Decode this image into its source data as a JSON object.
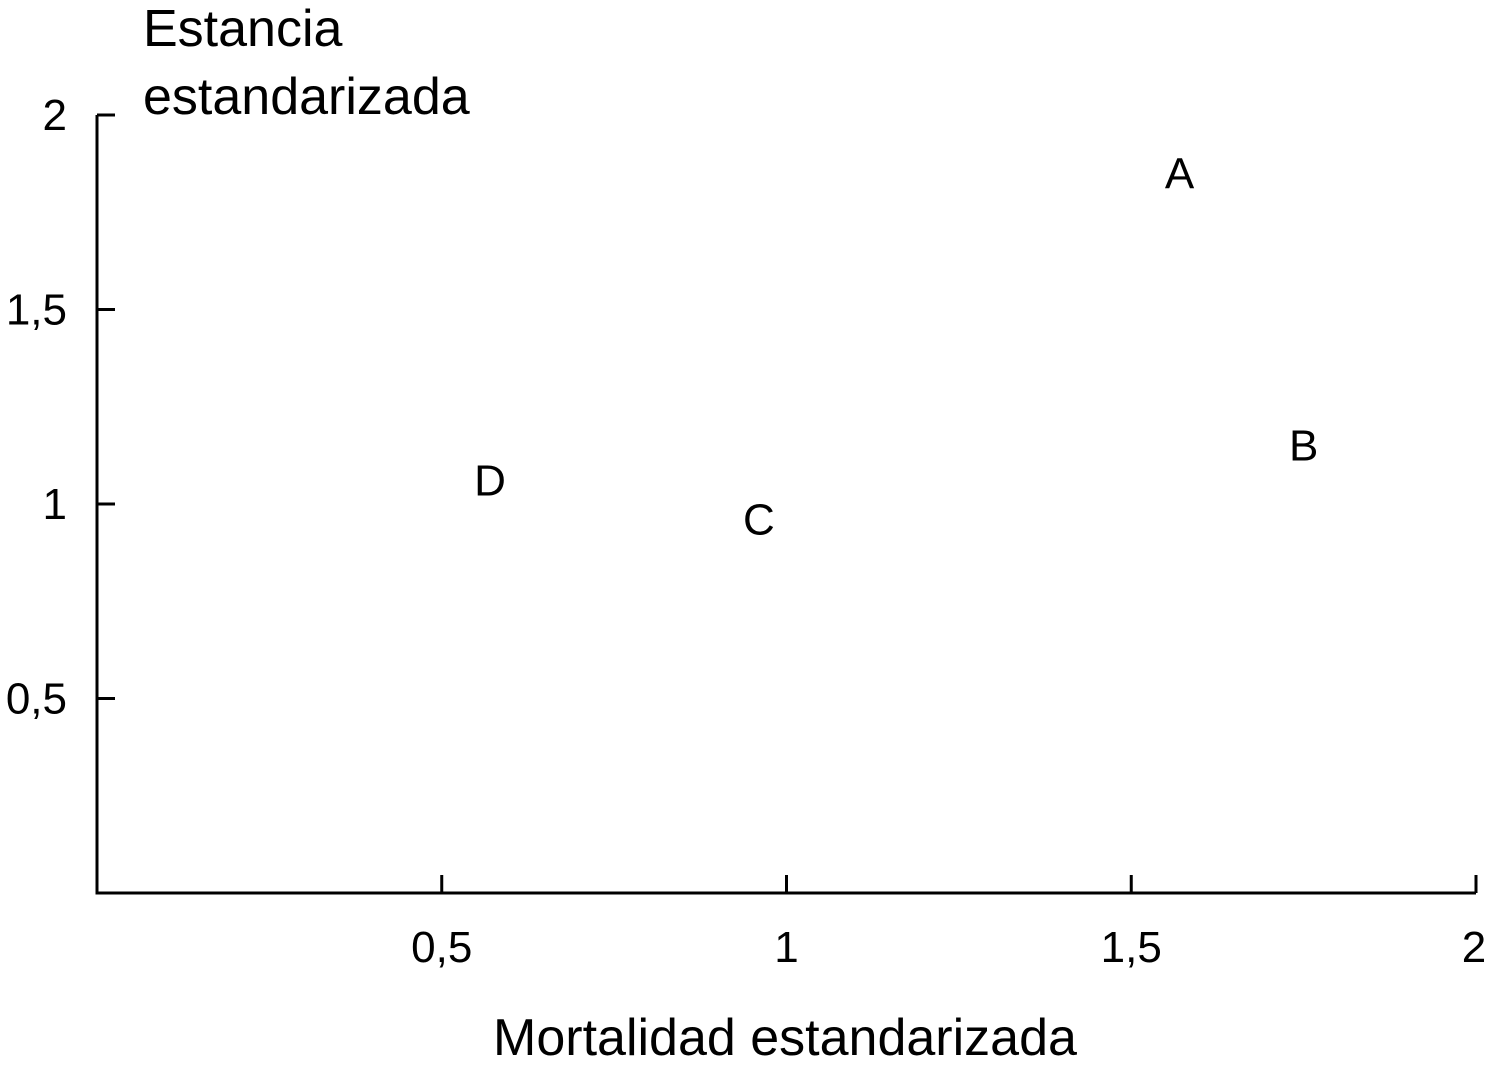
{
  "chart_data": {
    "type": "scatter",
    "title": "",
    "xlabel": "Mortalidad estandarizada",
    "ylabel_lines": [
      "Estancia",
      "estandarizada"
    ],
    "xlim": [
      0,
      2
    ],
    "ylim": [
      0,
      2
    ],
    "x_ticks": [
      {
        "value": 0.5,
        "label": "0,5"
      },
      {
        "value": 1,
        "label": "1"
      },
      {
        "value": 1.5,
        "label": "1,5"
      },
      {
        "value": 2,
        "label": "2"
      }
    ],
    "y_ticks": [
      {
        "value": 0.5,
        "label": "0,5"
      },
      {
        "value": 1,
        "label": "1"
      },
      {
        "value": 1.5,
        "label": "1,5"
      },
      {
        "value": 2,
        "label": "2"
      }
    ],
    "grid": false,
    "points": [
      {
        "label": "A",
        "x": 1.57,
        "y": 1.85
      },
      {
        "label": "B",
        "x": 1.75,
        "y": 1.15
      },
      {
        "label": "C",
        "x": 0.96,
        "y": 0.96
      },
      {
        "label": "D",
        "x": 0.57,
        "y": 1.06
      }
    ]
  }
}
